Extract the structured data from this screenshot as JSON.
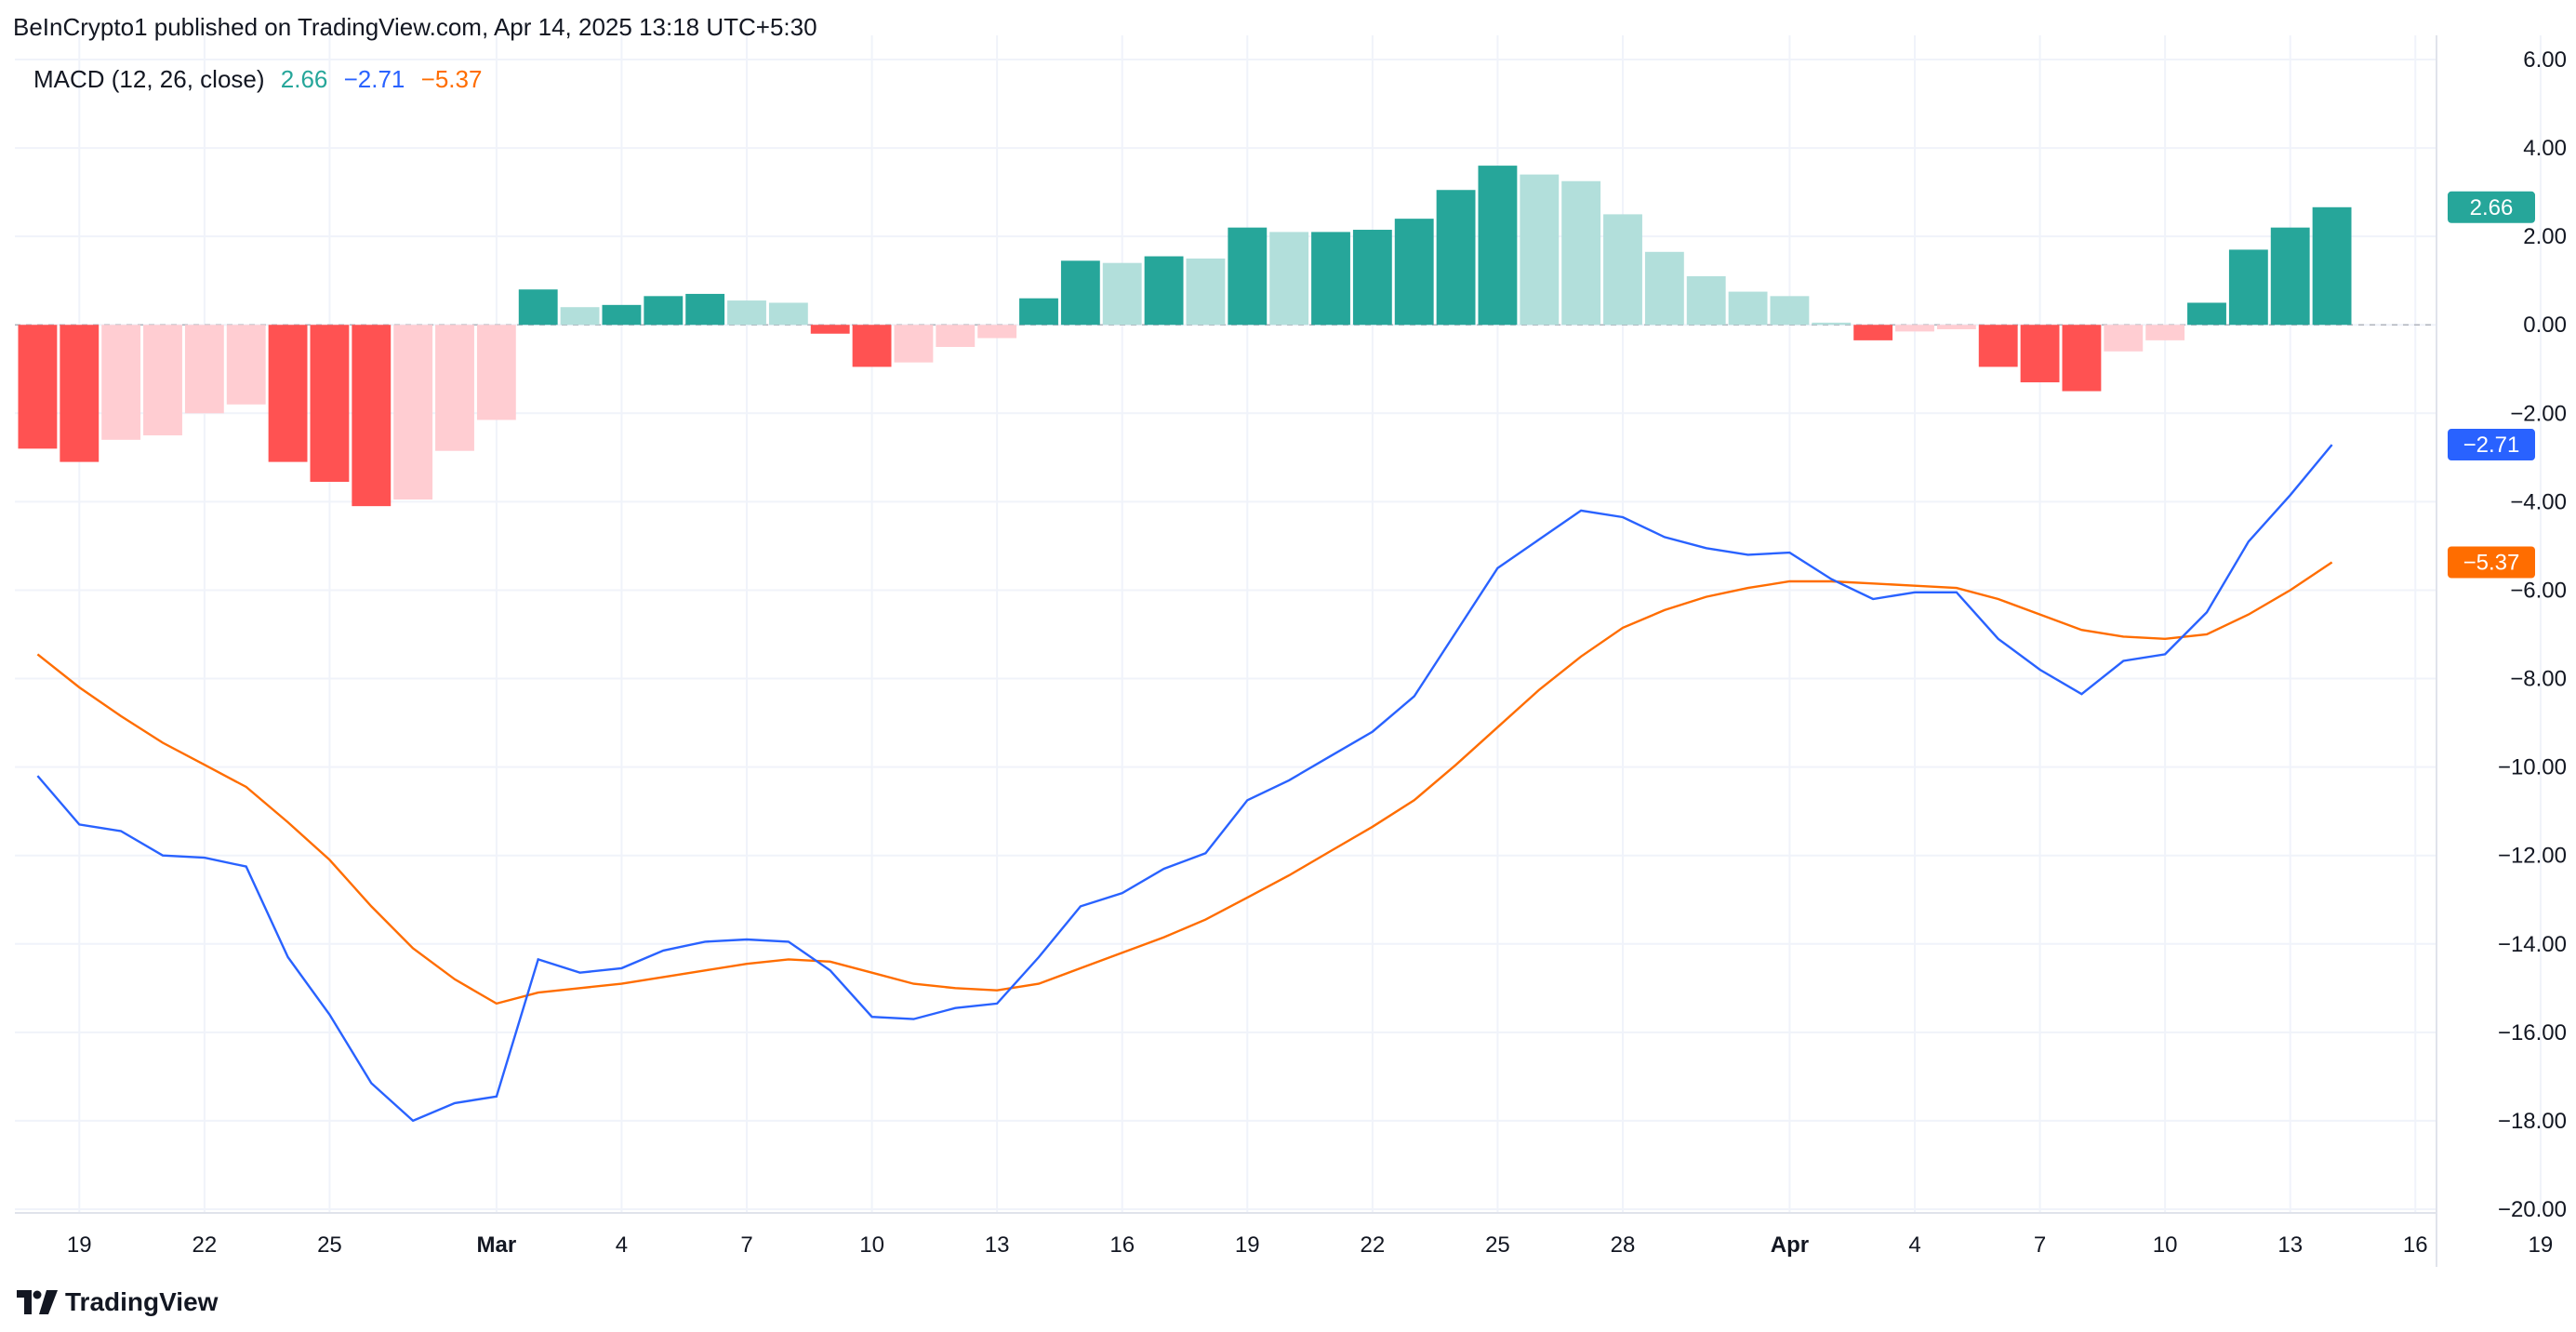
{
  "header": {
    "published_by": "BeInCrypto1 published on TradingView.com, Apr 14, 2025 13:18 UTC+5:30"
  },
  "legend": {
    "name": "MACD (12, 26, close)",
    "histogram_value": "2.66",
    "macd_value": "−2.71",
    "signal_value": "−5.37"
  },
  "brand": {
    "name": "TradingView"
  },
  "colors": {
    "histogram_up_strong": "#26a69a",
    "histogram_up_weak": "#b2dfdb",
    "histogram_down_strong": "#ff5252",
    "histogram_down_weak": "#ffcdd2",
    "macd_line": "#2962ff",
    "signal_line": "#ff6d00",
    "grid": "#f0f3fa",
    "zero_line": "#b2b5be"
  },
  "chart_data": {
    "type": "bar+line",
    "title": "MACD (12, 26, close)",
    "ylim": [
      -20,
      6
    ],
    "y_ticks": [
      6,
      4,
      2,
      0,
      -2,
      -4,
      -6,
      -8,
      -10,
      -12,
      -14,
      -16,
      -18,
      -20
    ],
    "y_tick_labels": [
      "6.00",
      "4.00",
      "2.00",
      "0.00",
      "−2.00",
      "−4.00",
      "−6.00",
      "−8.00",
      "−10.00",
      "−12.00",
      "−14.00",
      "−16.00",
      "−18.00",
      "−20.00"
    ],
    "x_day_range": [
      0,
      61
    ],
    "x_ticks": [
      {
        "day": 1,
        "label": "19",
        "bold": false
      },
      {
        "day": 4,
        "label": "22",
        "bold": false
      },
      {
        "day": 7,
        "label": "25",
        "bold": false
      },
      {
        "day": 11,
        "label": "Mar",
        "bold": true
      },
      {
        "day": 14,
        "label": "4",
        "bold": false
      },
      {
        "day": 17,
        "label": "7",
        "bold": false
      },
      {
        "day": 20,
        "label": "10",
        "bold": false
      },
      {
        "day": 23,
        "label": "13",
        "bold": false
      },
      {
        "day": 26,
        "label": "16",
        "bold": false
      },
      {
        "day": 29,
        "label": "19",
        "bold": false
      },
      {
        "day": 32,
        "label": "22",
        "bold": false
      },
      {
        "day": 35,
        "label": "25",
        "bold": false
      },
      {
        "day": 38,
        "label": "28",
        "bold": false
      },
      {
        "day": 42,
        "label": "Apr",
        "bold": true
      },
      {
        "day": 45,
        "label": "4",
        "bold": false
      },
      {
        "day": 48,
        "label": "7",
        "bold": false
      },
      {
        "day": 51,
        "label": "10",
        "bold": false
      },
      {
        "day": 54,
        "label": "13",
        "bold": false
      },
      {
        "day": 57,
        "label": "16",
        "bold": false
      },
      {
        "day": 60,
        "label": "19",
        "bold": false
      }
    ],
    "start_day": 0,
    "histogram": [
      -2.8,
      -3.1,
      -2.6,
      -2.5,
      -2.0,
      -1.8,
      -3.1,
      -3.55,
      -4.1,
      -3.95,
      -2.85,
      -2.15,
      0.8,
      0.4,
      0.45,
      0.65,
      0.7,
      0.55,
      0.5,
      -0.2,
      -0.95,
      -0.85,
      -0.5,
      -0.3,
      0.6,
      1.45,
      1.4,
      1.55,
      1.5,
      2.2,
      2.1,
      2.1,
      2.15,
      2.4,
      3.05,
      3.6,
      3.4,
      3.25,
      2.5,
      1.65,
      1.1,
      0.75,
      0.65,
      0.05,
      -0.35,
      -0.15,
      -0.1,
      -0.95,
      -1.3,
      -1.5,
      -0.6,
      -0.35,
      0.5,
      1.7,
      2.2,
      2.66
    ],
    "macd": [
      -10.2,
      -11.3,
      -11.45,
      -12.0,
      -12.05,
      -12.25,
      -14.3,
      -15.6,
      -17.15,
      -18.0,
      -17.6,
      -17.45,
      -14.35,
      -14.65,
      -14.55,
      -14.15,
      -13.95,
      -13.9,
      -13.95,
      -14.6,
      -15.65,
      -15.7,
      -15.45,
      -15.35,
      -14.3,
      -13.15,
      -12.85,
      -12.3,
      -11.95,
      -10.75,
      -10.3,
      -9.75,
      -9.2,
      -8.4,
      -6.95,
      -5.5,
      -4.85,
      -4.2,
      -4.35,
      -4.8,
      -5.05,
      -5.2,
      -5.15,
      -5.75,
      -6.2,
      -6.05,
      -6.05,
      -7.1,
      -7.8,
      -8.35,
      -7.6,
      -7.45,
      -6.5,
      -4.9,
      -3.85,
      -2.71
    ],
    "signal": [
      -7.45,
      -8.2,
      -8.85,
      -9.45,
      -9.95,
      -10.45,
      -11.25,
      -12.1,
      -13.15,
      -14.1,
      -14.8,
      -15.35,
      -15.1,
      -15.0,
      -14.9,
      -14.75,
      -14.6,
      -14.45,
      -14.35,
      -14.4,
      -14.65,
      -14.9,
      -15.0,
      -15.05,
      -14.9,
      -14.55,
      -14.2,
      -13.85,
      -13.45,
      -12.95,
      -12.45,
      -11.9,
      -11.35,
      -10.75,
      -9.95,
      -9.1,
      -8.25,
      -7.5,
      -6.85,
      -6.45,
      -6.15,
      -5.95,
      -5.8,
      -5.8,
      -5.85,
      -5.9,
      -5.95,
      -6.2,
      -6.55,
      -6.9,
      -7.05,
      -7.1,
      -7.0,
      -6.55,
      -6.0,
      -5.37
    ],
    "series": [
      {
        "name": "Histogram",
        "last_value": "2.66"
      },
      {
        "name": "MACD",
        "last_value": "−2.71"
      },
      {
        "name": "Signal",
        "last_value": "−5.37"
      }
    ]
  }
}
